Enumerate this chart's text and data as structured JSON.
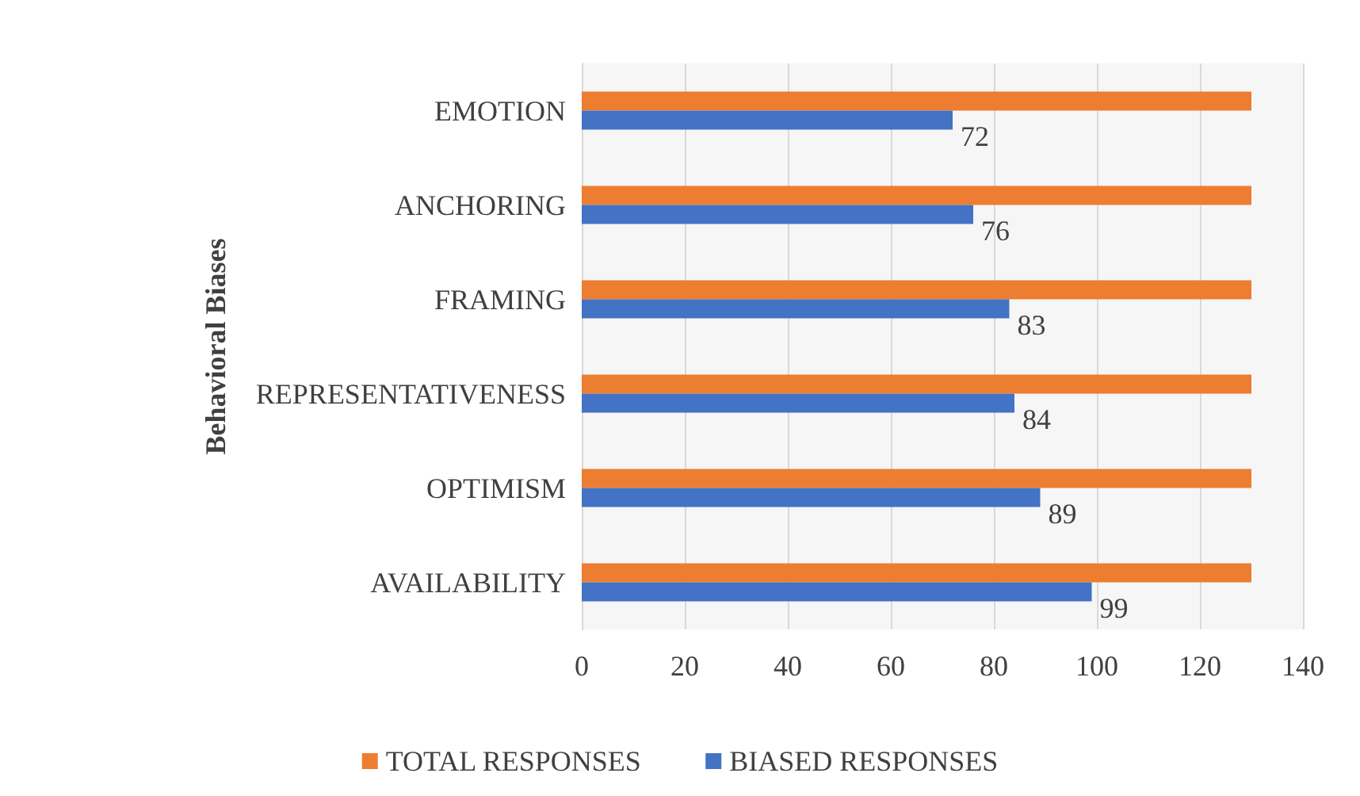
{
  "chart_data": {
    "type": "bar",
    "orientation": "horizontal",
    "ylabel": "Behavioral Biases",
    "categories": [
      "EMOTION",
      "ANCHORING",
      "FRAMING",
      "REPRESENTATIVENESS",
      "OPTIMISM",
      "AVAILABILITY"
    ],
    "series": [
      {
        "name": "TOTAL RESPONSES",
        "color": "#ed7d31",
        "values": [
          130,
          130,
          130,
          130,
          130,
          130
        ]
      },
      {
        "name": "BIASED RESPONSES",
        "color": "#4472c4",
        "values": [
          72,
          76,
          83,
          84,
          89,
          99
        ],
        "value_labels": [
          "72",
          "76",
          "83",
          "84",
          "89",
          "99"
        ]
      }
    ],
    "xlim": [
      0,
      140
    ],
    "xticks": [
      0,
      20,
      40,
      60,
      80,
      100,
      120,
      140
    ],
    "grid": "x",
    "legend": "bottom"
  }
}
